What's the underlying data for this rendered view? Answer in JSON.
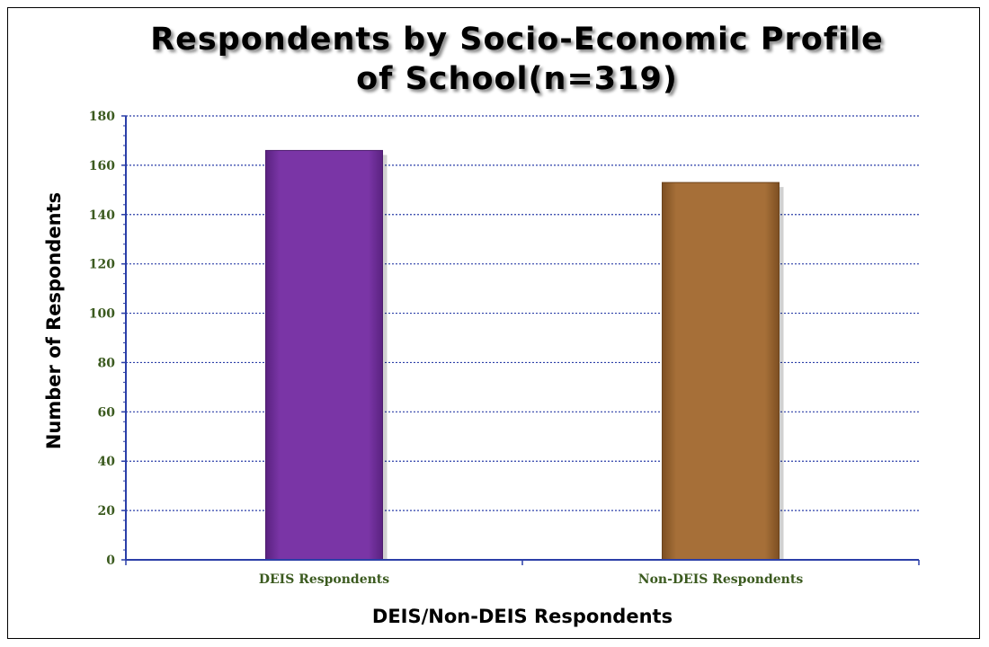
{
  "chart_data": {
    "type": "bar",
    "title": "Respondents by Socio-Economic Profile\nof School(n=319)",
    "xlabel": "DEIS/Non-DEIS Respondents",
    "ylabel": "Number of Respondents",
    "categories": [
      "DEIS Respondents",
      "Non-DEIS Respondents"
    ],
    "values": [
      166,
      153
    ],
    "ylim": [
      0,
      180
    ],
    "yticks": [
      0,
      20,
      40,
      60,
      80,
      100,
      120,
      140,
      160,
      180
    ],
    "grid": true,
    "legend": "none",
    "colors": [
      "#7a35a6",
      "#a66f38"
    ],
    "axis_color": "#2b3fa8",
    "grid_color": "#2b3fa8"
  }
}
